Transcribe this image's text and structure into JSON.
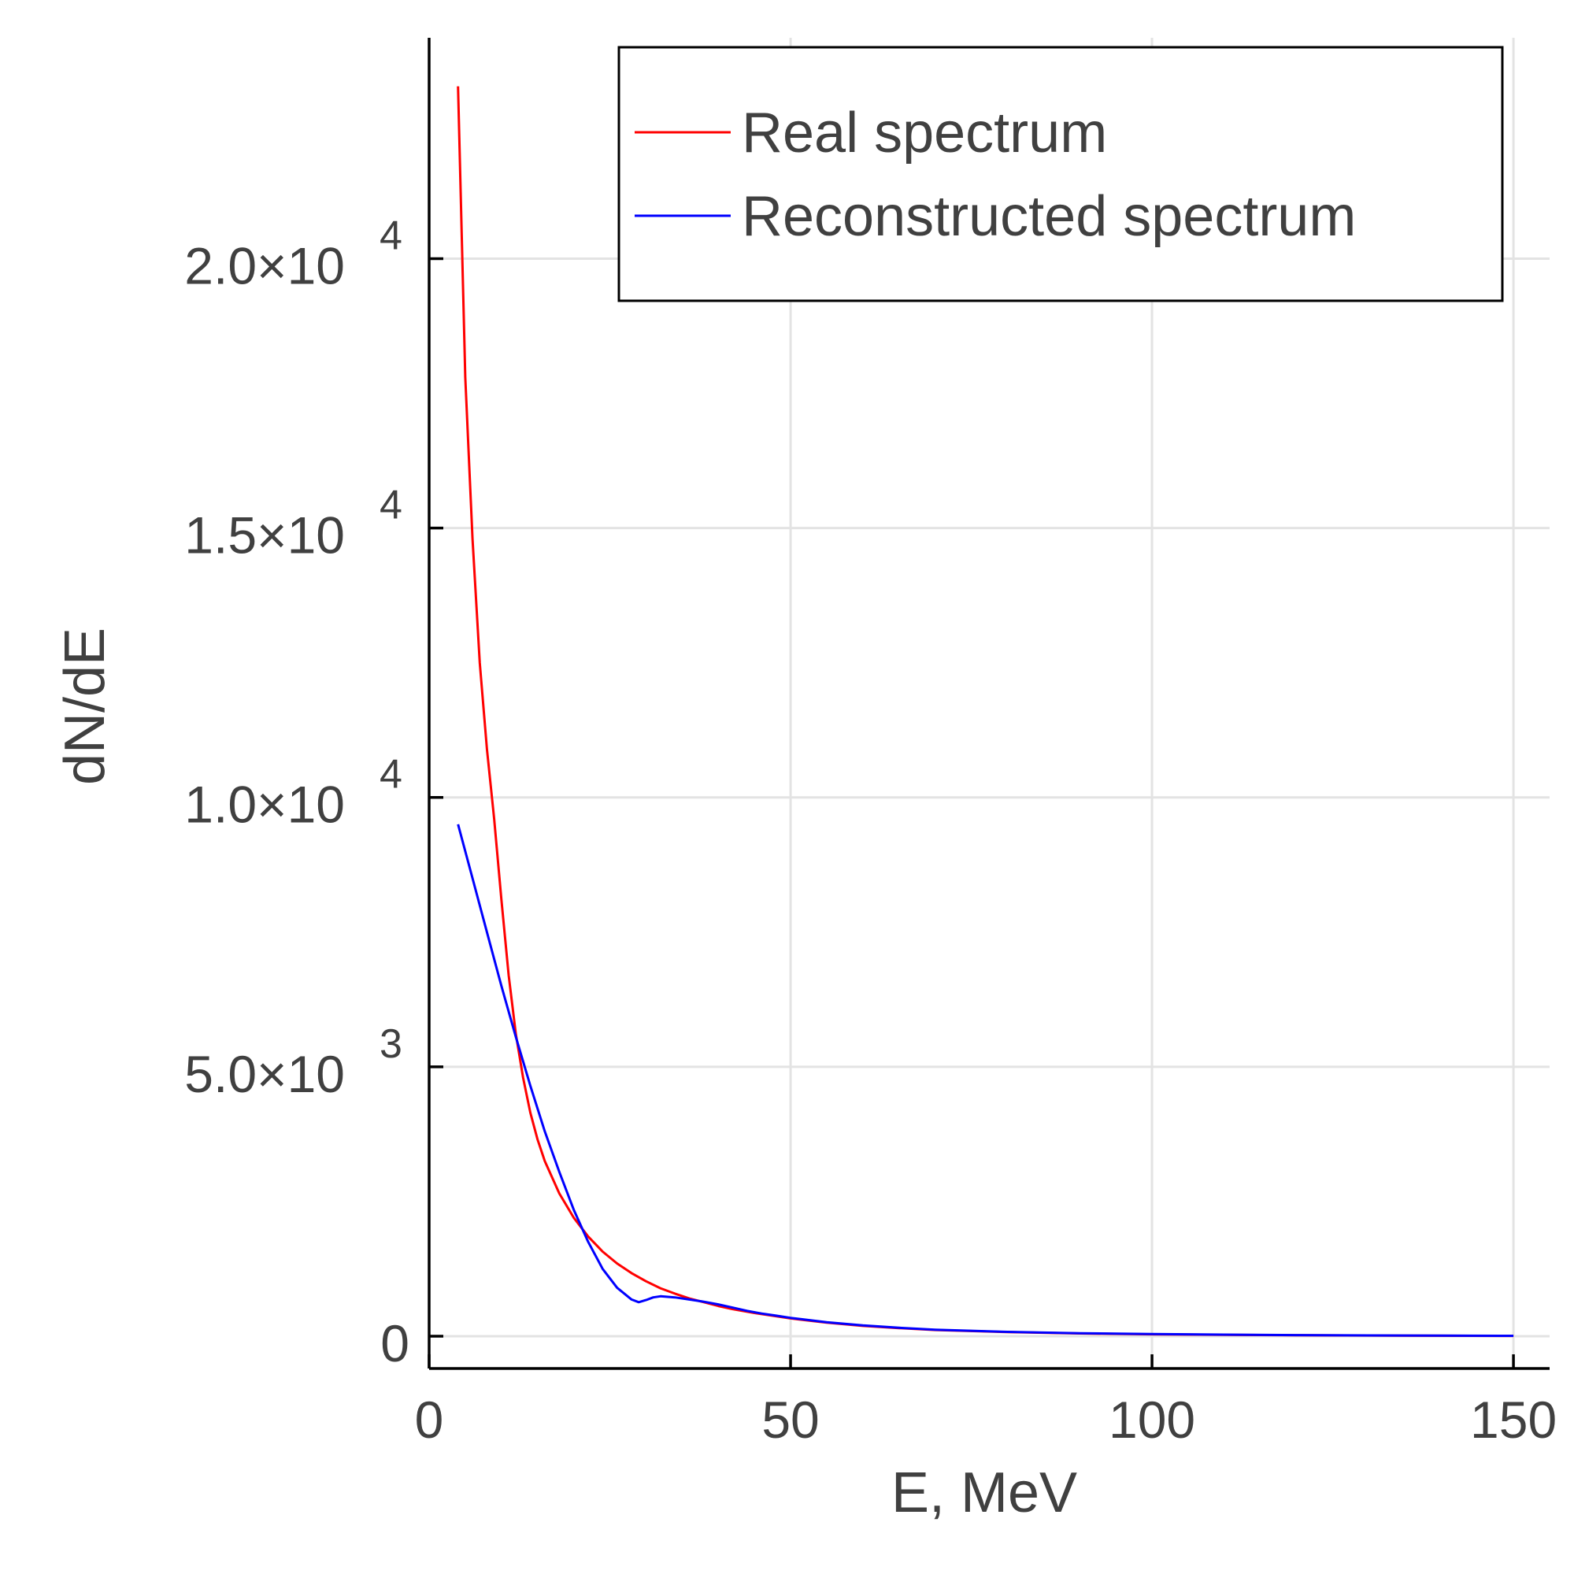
{
  "chart_data": {
    "type": "line",
    "xlabel": "E, MeV",
    "ylabel": "dN/dE",
    "xlim": [
      0,
      155
    ],
    "ylim": [
      -600,
      24100
    ],
    "grid": true,
    "legend_position": "top-right",
    "x_ticks": [
      {
        "value": 0,
        "label": "0"
      },
      {
        "value": 50,
        "label": "50"
      },
      {
        "value": 100,
        "label": "100"
      },
      {
        "value": 150,
        "label": "150"
      }
    ],
    "y_ticks": [
      {
        "value": 0,
        "mantissa": "0",
        "exponent": ""
      },
      {
        "value": 5000,
        "mantissa": "5.0×10",
        "exponent": "3"
      },
      {
        "value": 10000,
        "mantissa": "1.0×10",
        "exponent": "4"
      },
      {
        "value": 15000,
        "mantissa": "1.5×10",
        "exponent": "4"
      },
      {
        "value": 20000,
        "mantissa": "2.0×10",
        "exponent": "4"
      }
    ],
    "series": [
      {
        "name": "Real spectrum",
        "color": "#ff0000",
        "x": [
          4,
          5,
          6,
          7,
          8,
          9,
          10,
          11,
          12,
          13,
          14,
          15,
          16,
          18,
          20,
          22,
          24,
          26,
          28,
          30,
          32,
          34,
          36,
          38,
          40,
          42,
          45,
          48,
          50,
          55,
          60,
          65,
          70,
          80,
          90,
          100,
          110,
          120,
          130,
          140,
          150
        ],
        "y": [
          23200,
          17800,
          14800,
          12500,
          10900,
          9600,
          8100,
          6700,
          5600,
          4800,
          4150,
          3650,
          3250,
          2650,
          2200,
          1850,
          1570,
          1350,
          1170,
          1020,
          890,
          790,
          700,
          630,
          560,
          500,
          430,
          370,
          330,
          250,
          190,
          150,
          115,
          75,
          50,
          35,
          25,
          18,
          12,
          8,
          5
        ]
      },
      {
        "name": "Reconstructed spectrum",
        "color": "#0000ff",
        "x": [
          4,
          6,
          8,
          10,
          12,
          14,
          16,
          18,
          20,
          22,
          24,
          26,
          28,
          29,
          30,
          31,
          32,
          34,
          36,
          38,
          40,
          42,
          44,
          46,
          48,
          50,
          55,
          60,
          65,
          70,
          80,
          90,
          100,
          110,
          120,
          130,
          140,
          150
        ],
        "y": [
          9500,
          8500,
          7500,
          6500,
          5550,
          4650,
          3800,
          3050,
          2350,
          1750,
          1250,
          900,
          680,
          630,
          670,
          720,
          740,
          720,
          680,
          640,
          590,
          530,
          470,
          420,
          380,
          340,
          260,
          200,
          155,
          120,
          80,
          55,
          40,
          28,
          20,
          14,
          10,
          6
        ]
      }
    ]
  }
}
